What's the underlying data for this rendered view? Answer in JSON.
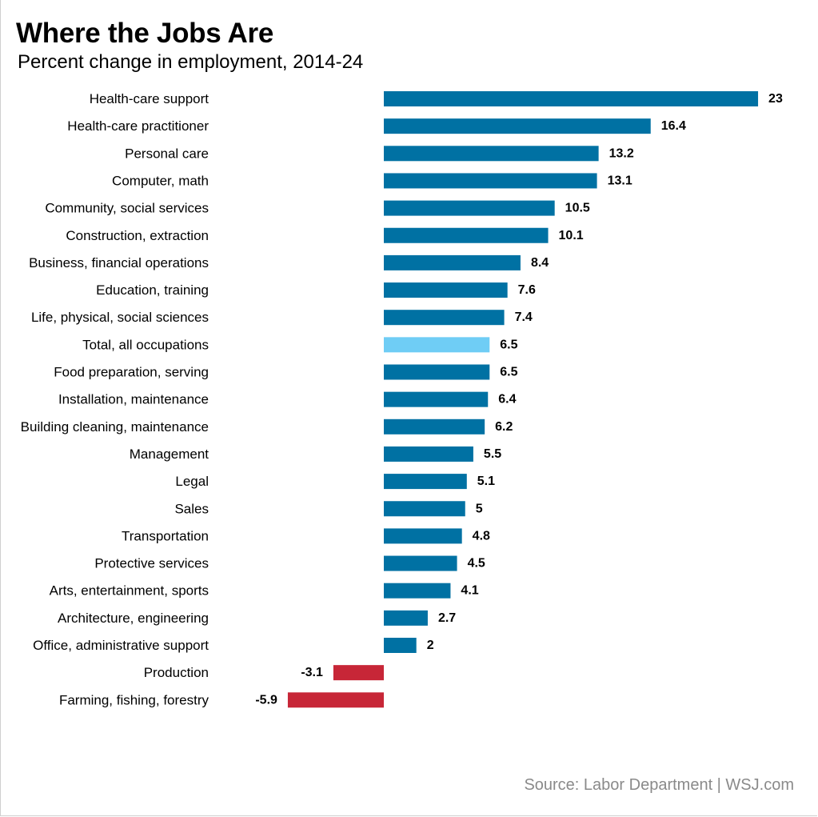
{
  "title": "Where the Jobs Are",
  "subtitle": "Percent change in employment, 2014-24",
  "source": "Source: Labor Department  |  WSJ.com",
  "colors": {
    "positive": "#0071a3",
    "highlight": "#6fcdf5",
    "negative": "#c72637"
  },
  "chart_data": {
    "type": "bar",
    "orientation": "horizontal",
    "title": "Where the Jobs Are",
    "subtitle": "Percent change in employment, 2014-24",
    "xlabel": "",
    "ylabel": "",
    "xlim": [
      -5.9,
      23
    ],
    "grid": false,
    "highlight_category": "Total, all occupations",
    "categories": [
      "Health-care support",
      "Health-care practitioner",
      "Personal care",
      "Computer, math",
      "Community, social services",
      "Construction, extraction",
      "Business, financial operations",
      "Education, training",
      "Life, physical, social sciences",
      "Total, all occupations",
      "Food preparation, serving",
      "Installation, maintenance",
      "Building cleaning, maintenance",
      "Management",
      "Legal",
      "Sales",
      "Transportation",
      "Protective services",
      "Arts, entertainment, sports",
      "Architecture, engineering",
      "Office, administrative support",
      "Production",
      "Farming, fishing, forestry"
    ],
    "values": [
      23,
      16.4,
      13.2,
      13.1,
      10.5,
      10.1,
      8.4,
      7.6,
      7.4,
      6.5,
      6.5,
      6.4,
      6.2,
      5.5,
      5.1,
      5,
      4.8,
      4.5,
      4.1,
      2.7,
      2,
      -3.1,
      -5.9
    ],
    "labels": [
      "23",
      "16.4",
      "13.2",
      "13.1",
      "10.5",
      "10.1",
      "8.4",
      "7.6",
      "7.4",
      "6.5",
      "6.5",
      "6.4",
      "6.2",
      "5.5",
      "5.1",
      "5",
      "4.8",
      "4.5",
      "4.1",
      "2.7",
      "2",
      "-3.1",
      "-5.9"
    ]
  }
}
